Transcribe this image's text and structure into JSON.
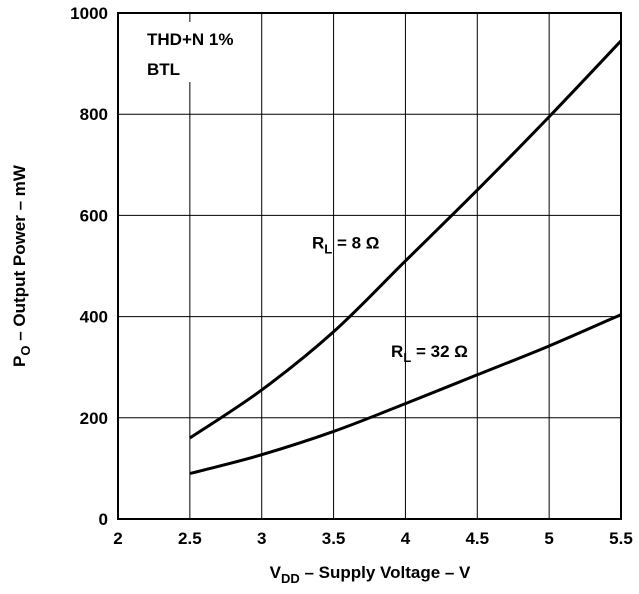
{
  "chart_data": {
    "type": "line",
    "title": "",
    "xlabel": {
      "prefix": "V",
      "subscript": "DD",
      "suffix": " – Supply Voltage – V"
    },
    "ylabel": {
      "prefix": "P",
      "subscript": "O",
      "suffix": " – Output Power – mW"
    },
    "xlim": [
      2,
      5.5
    ],
    "ylim": [
      0,
      1000
    ],
    "xticks": [
      2,
      2.5,
      3,
      3.5,
      4,
      4.5,
      5,
      5.5
    ],
    "xtick_labels": [
      "2",
      "2.5",
      "3",
      "3.5",
      "4",
      "4.5",
      "5",
      "5.5"
    ],
    "yticks": [
      0,
      200,
      400,
      600,
      800,
      1000
    ],
    "ytick_labels": [
      "0",
      "200",
      "400",
      "600",
      "800",
      "1000"
    ],
    "grid": true,
    "line_color": "#000000",
    "conditions": [
      "THD+N 1%",
      "BTL"
    ],
    "series": [
      {
        "label_prefix": "R",
        "label_subscript": "L",
        "label_suffix": " = 8 Ω",
        "label_anchor": [
          3.35,
          535
        ],
        "x": [
          2.5,
          3.0,
          3.5,
          4.0,
          4.5,
          5.0,
          5.5
        ],
        "y": [
          160,
          255,
          370,
          510,
          650,
          795,
          945
        ]
      },
      {
        "label_prefix": "R",
        "label_subscript": "L",
        "label_suffix": " = 32 Ω",
        "label_anchor": [
          3.9,
          320
        ],
        "x": [
          2.5,
          2.6,
          3.0,
          3.5,
          4.0,
          4.5,
          5.0,
          5.5
        ],
        "y": [
          90,
          97,
          127,
          173,
          228,
          285,
          342,
          404
        ]
      }
    ]
  }
}
